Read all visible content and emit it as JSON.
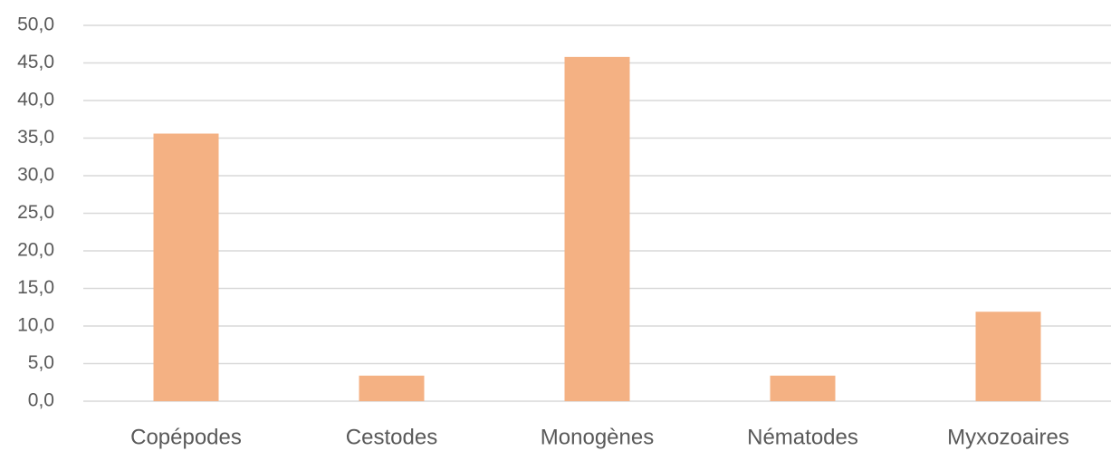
{
  "chart_data": {
    "type": "bar",
    "categories": [
      "Copépodes",
      "Cestodes",
      "Monogènes",
      "Nématodes",
      "Myxozoaires"
    ],
    "values": [
      35.6,
      3.4,
      45.8,
      3.4,
      11.9
    ],
    "color": "#f4b183",
    "ylim": [
      0,
      50
    ],
    "yticks": [
      {
        "value": 0,
        "label": "0,0"
      },
      {
        "value": 5,
        "label": "5,0"
      },
      {
        "value": 10,
        "label": "10,0"
      },
      {
        "value": 15,
        "label": "15,0"
      },
      {
        "value": 20,
        "label": "20,0"
      },
      {
        "value": 25,
        "label": "25,0"
      },
      {
        "value": 30,
        "label": "30,0"
      },
      {
        "value": 35,
        "label": "35,0"
      },
      {
        "value": 40,
        "label": "40,0"
      },
      {
        "value": 45,
        "label": "45,0"
      },
      {
        "value": 50,
        "label": "50,0"
      }
    ],
    "grid": true
  }
}
